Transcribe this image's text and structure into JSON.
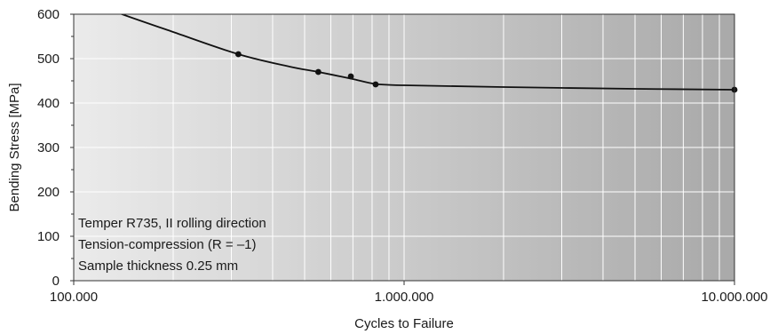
{
  "chart_data": {
    "type": "line",
    "title": "",
    "xlabel": "Cycles to Failure",
    "ylabel": "Bending Stress [MPa]",
    "xscale": "log",
    "xlim": [
      100000,
      10000000
    ],
    "ylim": [
      0,
      600
    ],
    "grid": true,
    "x_tick_labels": [
      "100.000",
      "1.000.000",
      "10.000.000"
    ],
    "x_tick_values": [
      100000,
      1000000,
      10000000
    ],
    "y_ticks": [
      0,
      100,
      200,
      300,
      400,
      500,
      600
    ],
    "series": [
      {
        "points_x": [
          315000,
          550000,
          690000,
          820000,
          10000000
        ],
        "points_y": [
          510,
          470,
          460,
          442,
          430
        ],
        "curve_x": [
          100000,
          140000,
          200000,
          315000,
          450000,
          550000,
          690000,
          820000,
          1000000,
          2000000,
          5000000,
          10000000
        ],
        "curve_y": [
          640,
          600,
          560,
          510,
          482,
          470,
          455,
          443,
          440,
          436,
          432,
          430
        ]
      }
    ],
    "annotations": [
      "Temper R735, II rolling direction",
      "Tension-compression (R = –1)",
      "Sample thickness 0.25 mm"
    ],
    "colors": {
      "plot_bg_light": "#ebebeb",
      "plot_bg_dark": "#a9a9a9",
      "grid": "#ffffff",
      "line": "#111111"
    }
  }
}
